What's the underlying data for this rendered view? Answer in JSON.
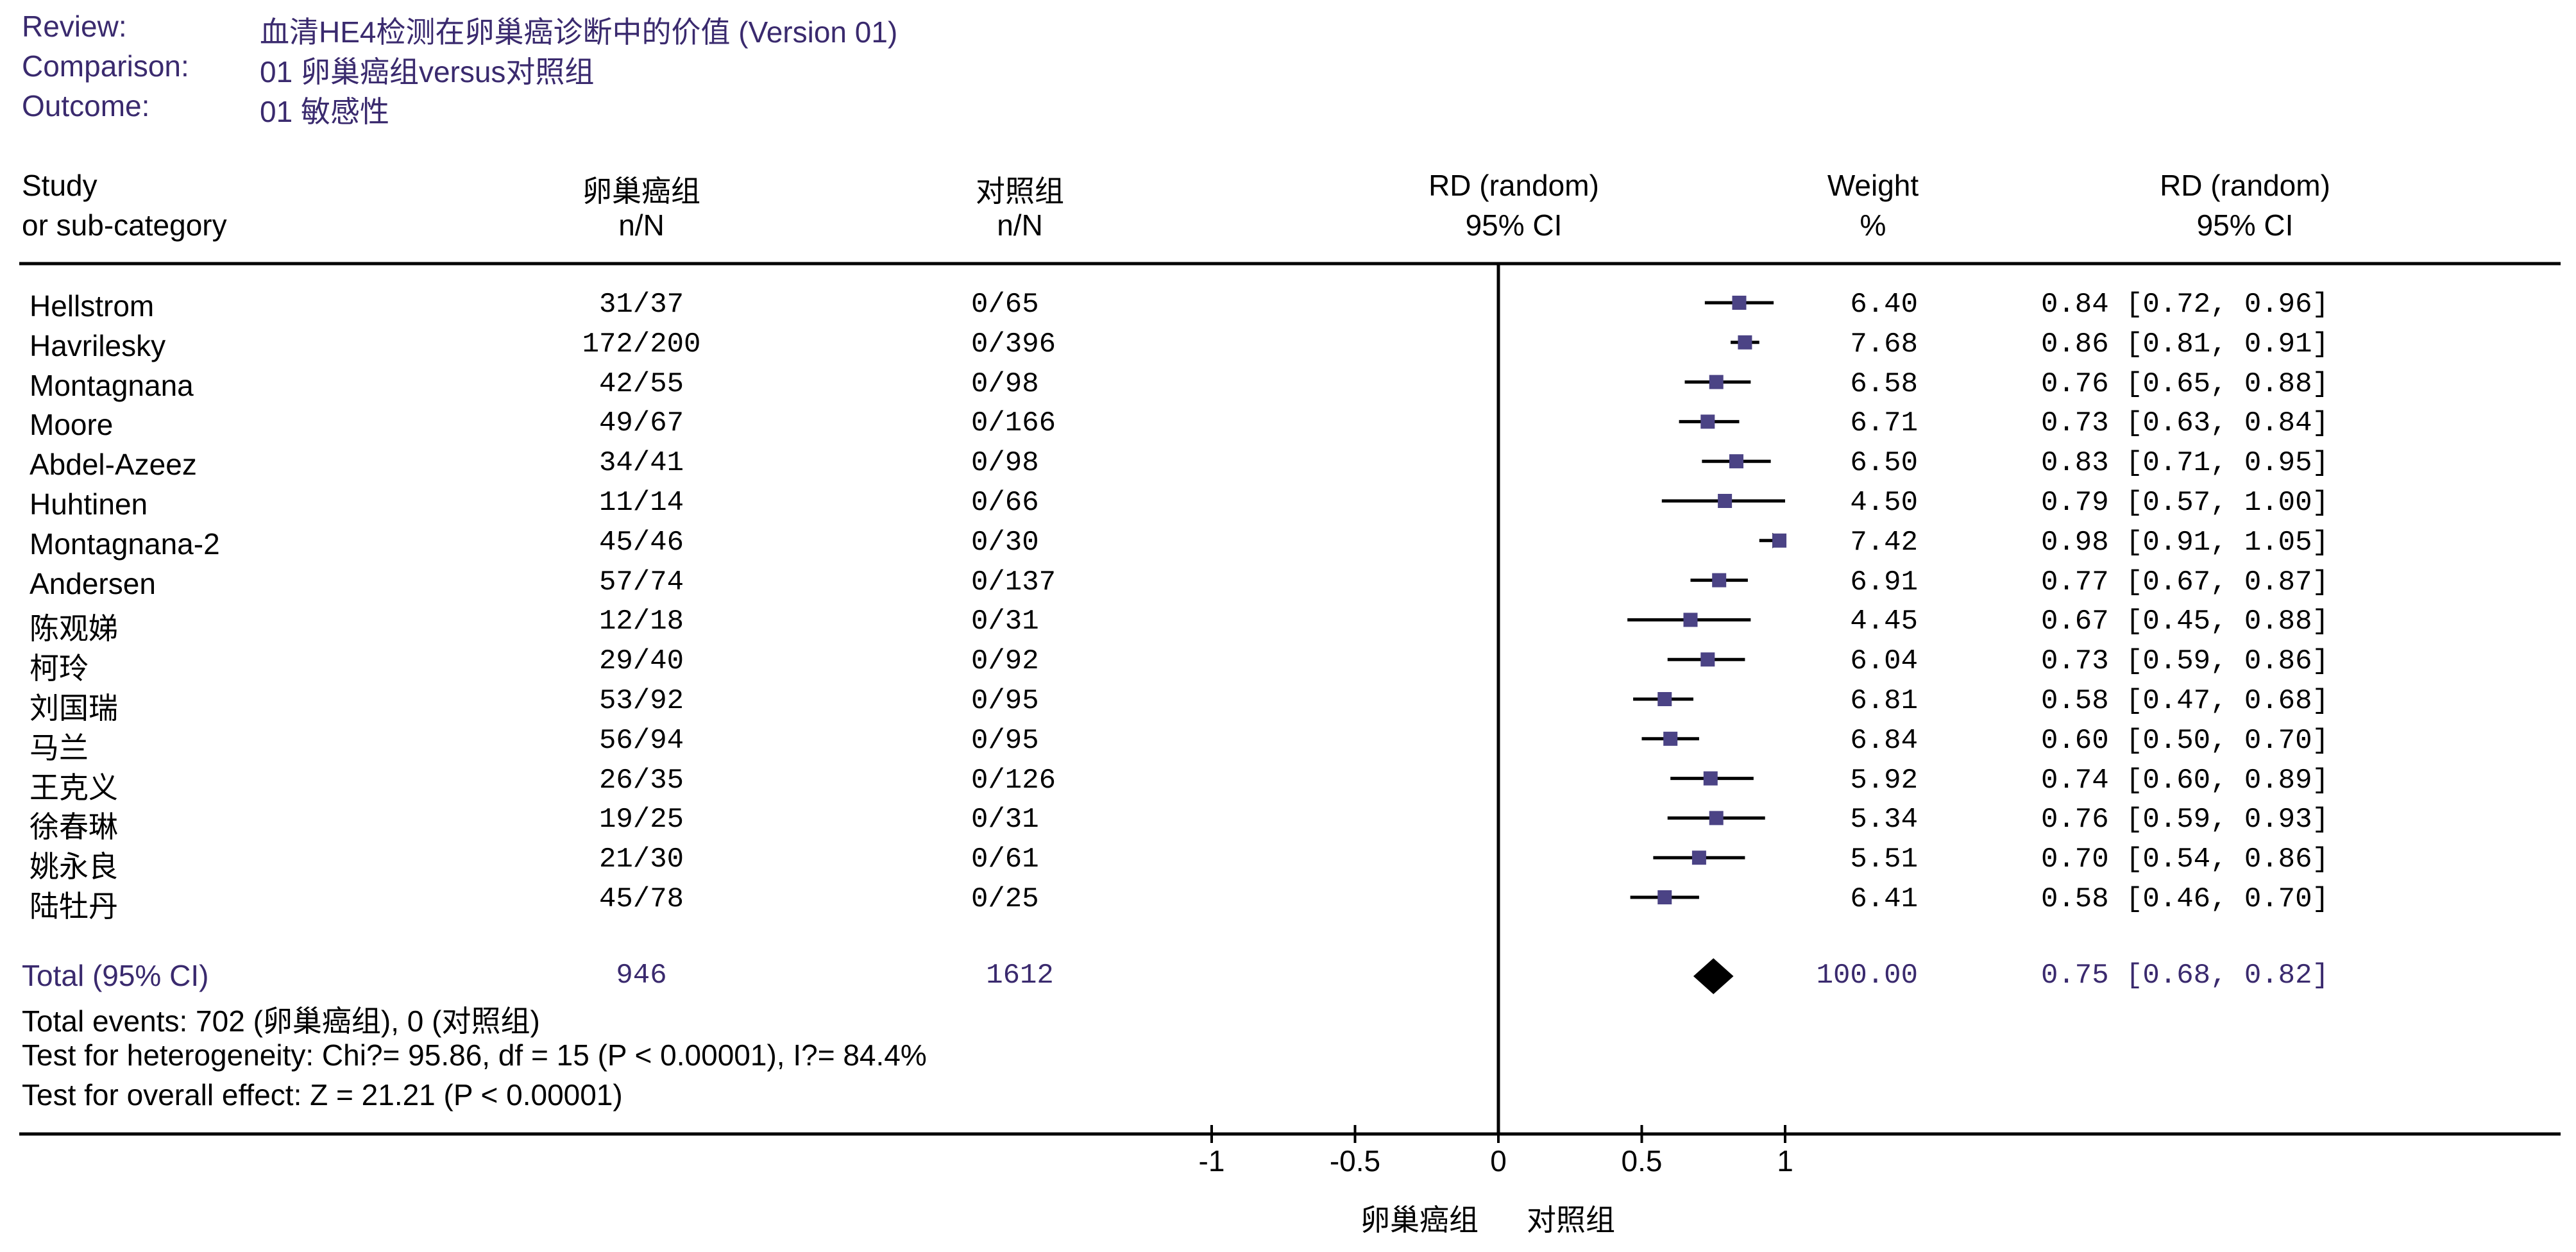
{
  "meta": {
    "review_label": "Review:",
    "review_value": "血清HE4检测在卵巢癌诊断中的价值 (Version 01)",
    "comparison_label": "Comparison:",
    "comparison_value": "01 卵巢癌组versus对照组",
    "outcome_label": "Outcome:",
    "outcome_value": "01 敏感性"
  },
  "headers": {
    "study_1": "Study",
    "study_2": "or sub-category",
    "exp_1": "卵巢癌组",
    "exp_2": "n/N",
    "ctrl_1": "对照组",
    "ctrl_2": "n/N",
    "plot_1": "RD (random)",
    "plot_2": "95% CI",
    "weight_1": "Weight",
    "weight_2": "%",
    "ci_1": "RD (random)",
    "ci_2": "95% CI"
  },
  "chart_data": {
    "type": "forest",
    "measure": "RD (random)",
    "xlim": [
      -1,
      1
    ],
    "ticks": [
      -1,
      -0.5,
      0,
      0.5,
      1
    ],
    "tick_labels": [
      "-1",
      "-0.5",
      "0",
      "0.5",
      "1"
    ],
    "favours_left": "卵巢癌组",
    "favours_right": "对照组",
    "studies": [
      {
        "name": "Hellstrom",
        "exp": "31/37",
        "ctrl": "0/65",
        "rd": 0.84,
        "lo": 0.72,
        "hi": 0.96,
        "weight": "6.40",
        "ci": "0.84 [0.72, 0.96]"
      },
      {
        "name": "Havrilesky",
        "exp": "172/200",
        "ctrl": "0/396",
        "rd": 0.86,
        "lo": 0.81,
        "hi": 0.91,
        "weight": "7.68",
        "ci": "0.86 [0.81, 0.91]"
      },
      {
        "name": "Montagnana",
        "exp": "42/55",
        "ctrl": "0/98",
        "rd": 0.76,
        "lo": 0.65,
        "hi": 0.88,
        "weight": "6.58",
        "ci": "0.76 [0.65, 0.88]"
      },
      {
        "name": "Moore",
        "exp": "49/67",
        "ctrl": "0/166",
        "rd": 0.73,
        "lo": 0.63,
        "hi": 0.84,
        "weight": "6.71",
        "ci": "0.73 [0.63, 0.84]"
      },
      {
        "name": "Abdel-Azeez",
        "exp": "34/41",
        "ctrl": "0/98",
        "rd": 0.83,
        "lo": 0.71,
        "hi": 0.95,
        "weight": "6.50",
        "ci": "0.83 [0.71, 0.95]"
      },
      {
        "name": "Huhtinen",
        "exp": "11/14",
        "ctrl": "0/66",
        "rd": 0.79,
        "lo": 0.57,
        "hi": 1.0,
        "weight": "4.50",
        "ci": "0.79 [0.57, 1.00]"
      },
      {
        "name": "Montagnana-2",
        "exp": "45/46",
        "ctrl": "0/30",
        "rd": 0.98,
        "lo": 0.91,
        "hi": 1.05,
        "weight": "7.42",
        "ci": "0.98 [0.91, 1.05]"
      },
      {
        "name": "Andersen",
        "exp": "57/74",
        "ctrl": "0/137",
        "rd": 0.77,
        "lo": 0.67,
        "hi": 0.87,
        "weight": "6.91",
        "ci": "0.77 [0.67, 0.87]"
      },
      {
        "name": "陈观娣",
        "exp": "12/18",
        "ctrl": "0/31",
        "rd": 0.67,
        "lo": 0.45,
        "hi": 0.88,
        "weight": "4.45",
        "ci": "0.67 [0.45, 0.88]"
      },
      {
        "name": "柯玲",
        "exp": "29/40",
        "ctrl": "0/92",
        "rd": 0.73,
        "lo": 0.59,
        "hi": 0.86,
        "weight": "6.04",
        "ci": "0.73 [0.59, 0.86]"
      },
      {
        "name": "刘国瑞",
        "exp": "53/92",
        "ctrl": "0/95",
        "rd": 0.58,
        "lo": 0.47,
        "hi": 0.68,
        "weight": "6.81",
        "ci": "0.58 [0.47, 0.68]"
      },
      {
        "name": "马兰",
        "exp": "56/94",
        "ctrl": "0/95",
        "rd": 0.6,
        "lo": 0.5,
        "hi": 0.7,
        "weight": "6.84",
        "ci": "0.60 [0.50, 0.70]"
      },
      {
        "name": "王克义",
        "exp": "26/35",
        "ctrl": "0/126",
        "rd": 0.74,
        "lo": 0.6,
        "hi": 0.89,
        "weight": "5.92",
        "ci": "0.74 [0.60, 0.89]"
      },
      {
        "name": "徐春琳",
        "exp": "19/25",
        "ctrl": "0/31",
        "rd": 0.76,
        "lo": 0.59,
        "hi": 0.93,
        "weight": "5.34",
        "ci": "0.76 [0.59, 0.93]"
      },
      {
        "name": "姚永良",
        "exp": "21/30",
        "ctrl": "0/61",
        "rd": 0.7,
        "lo": 0.54,
        "hi": 0.86,
        "weight": "5.51",
        "ci": "0.70 [0.54, 0.86]"
      },
      {
        "name": "陆牡丹",
        "exp": "45/78",
        "ctrl": "0/25",
        "rd": 0.58,
        "lo": 0.46,
        "hi": 0.7,
        "weight": "6.41",
        "ci": "0.58 [0.46, 0.70]"
      }
    ],
    "total": {
      "label": "Total (95% CI)",
      "exp_total": "946",
      "ctrl_total": "1612",
      "rd": 0.75,
      "lo": 0.68,
      "hi": 0.82,
      "weight": "100.00",
      "ci": "0.75 [0.68, 0.82]"
    }
  },
  "footer": {
    "events": "Total events: 702 (卵巢癌组), 0 (对照组)",
    "heterogeneity": "Test for heterogeneity: Chi?= 95.86, df = 15 (P < 0.00001), I?= 84.4%",
    "overall": "Test for overall effect: Z = 21.21 (P < 0.00001)"
  },
  "colors": {
    "meta_text": "#3a2a6e",
    "box": "#4b4385",
    "line": "#000000"
  }
}
